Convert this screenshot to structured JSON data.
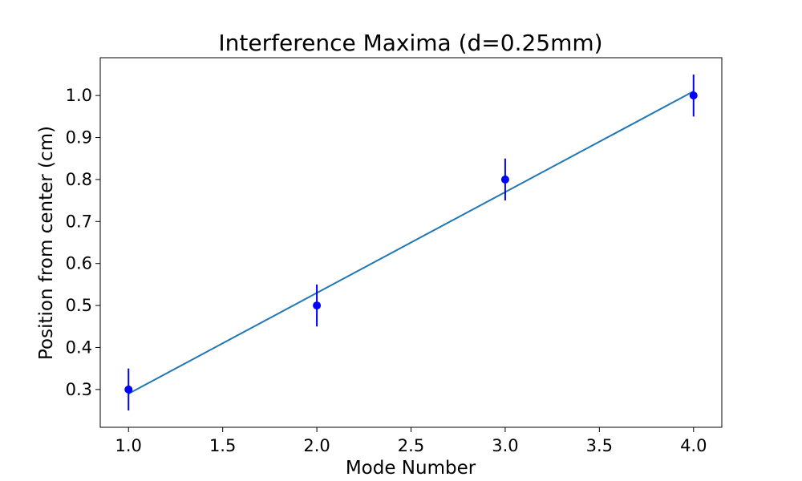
{
  "chart_data": {
    "type": "scatter",
    "title": "Interference Maxima (d=0.25mm)",
    "xlabel": "Mode Number",
    "ylabel": "Position from center (cm)",
    "xlim": [
      0.85,
      4.15
    ],
    "ylim": [
      0.21,
      1.09
    ],
    "xticks": [
      1.0,
      1.5,
      2.0,
      2.5,
      3.0,
      3.5,
      4.0
    ],
    "xtick_labels": [
      "1.0",
      "1.5",
      "2.0",
      "2.5",
      "3.0",
      "3.5",
      "4.0"
    ],
    "yticks": [
      0.3,
      0.4,
      0.5,
      0.6,
      0.7,
      0.8,
      0.9,
      1.0
    ],
    "ytick_labels": [
      "0.3",
      "0.4",
      "0.5",
      "0.6",
      "0.7",
      "0.8",
      "0.9",
      "1.0"
    ],
    "grid": false,
    "legend": "none",
    "series": [
      {
        "kind": "errorbar",
        "x": [
          1,
          2,
          3,
          4
        ],
        "y": [
          0.3,
          0.5,
          0.8,
          1.0
        ],
        "yerr": [
          0.05,
          0.05,
          0.05,
          0.05
        ],
        "color": "#0000ff"
      },
      {
        "kind": "fit-line",
        "x": [
          1,
          4
        ],
        "y": [
          0.29,
          1.01
        ],
        "color": "#1f77b4"
      }
    ]
  }
}
